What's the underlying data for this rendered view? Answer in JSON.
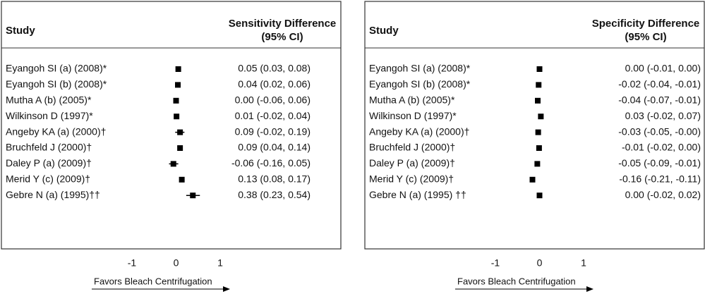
{
  "chart_data": [
    {
      "type": "forest",
      "header_study": "Study",
      "header_effect": [
        "Sensitivity Difference",
        "(95% CI)"
      ],
      "categories": [
        "Eyangoh SI (a) (2008)*",
        "Eyangoh SI (b) (2008)*",
        "Mutha A (b) (2005)*",
        "Wilkinson D (1997)*",
        "Angeby KA (a) (2000)†",
        "Bruchfeld J (2000)†",
        "Daley P (a) (2009)†",
        "Merid Y (c) (2009)†",
        "Gebre N (a) (1995)††"
      ],
      "values": [
        0.05,
        0.04,
        0.0,
        0.01,
        0.09,
        0.09,
        -0.06,
        0.13,
        0.38
      ],
      "lower": [
        0.03,
        0.02,
        -0.06,
        -0.02,
        -0.02,
        0.04,
        -0.16,
        0.08,
        0.23
      ],
      "upper": [
        0.08,
        0.06,
        0.06,
        0.04,
        0.19,
        0.14,
        0.05,
        0.17,
        0.54
      ],
      "value_labels": [
        "0.05 (0.03, 0.08)",
        "0.04 (0.02, 0.06)",
        "0.00 (-0.06, 0.06)",
        "0.01 (-0.02, 0.04)",
        "0.09 (-0.02, 0.19)",
        "0.09 (0.04, 0.14)",
        "-0.06 (-0.16, 0.05)",
        "0.13 (0.08, 0.17)",
        "0.38 (0.23, 0.54)"
      ],
      "xlim": [
        -1,
        1
      ],
      "xticks": [
        -1,
        0,
        1
      ],
      "xlabel": "Favors Bleach Centrifugation",
      "color": "#000000"
    },
    {
      "type": "forest",
      "header_study": "Study",
      "header_effect": [
        "Specificity Difference",
        "(95% CI)"
      ],
      "categories": [
        "Eyangoh SI (a) (2008)*",
        "Eyangoh SI (b) (2008)*",
        "Mutha A (b) (2005)*",
        "Wilkinson D (1997)*",
        "Angeby KA (a) (2000)†",
        "Bruchfeld J (2000)†",
        "Daley P (a) (2009)†",
        "Merid Y (c) (2009)†",
        "Gebre N (a) (1995) ††"
      ],
      "values": [
        0.0,
        -0.02,
        -0.04,
        0.03,
        -0.03,
        -0.01,
        -0.05,
        -0.16,
        0.0
      ],
      "lower": [
        -0.01,
        -0.04,
        -0.07,
        -0.02,
        -0.05,
        -0.02,
        -0.09,
        -0.21,
        -0.02
      ],
      "upper": [
        0.0,
        -0.01,
        -0.01,
        0.07,
        -0.0,
        0.0,
        -0.01,
        -0.11,
        0.02
      ],
      "value_labels": [
        "0.00 (-0.01, 0.00)",
        "-0.02 (-0.04, -0.01)",
        "-0.04 (-0.07, -0.01)",
        "0.03 (-0.02, 0.07)",
        "-0.03 (-0.05, -0.00)",
        "-0.01 (-0.02, 0.00)",
        "-0.05 (-0.09, -0.01)",
        "-0.16 (-0.21, -0.11)",
        "0.00 (-0.02, 0.02)"
      ],
      "xlim": [
        -1,
        1
      ],
      "xticks": [
        -1,
        0,
        1
      ],
      "xlabel": "Favors Bleach Centrifugation",
      "color": "#000000"
    }
  ]
}
